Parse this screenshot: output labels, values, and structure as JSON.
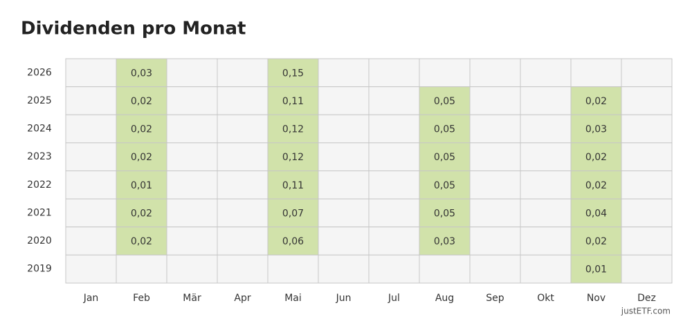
{
  "chart_data": {
    "type": "heatmap",
    "title": "Dividenden pro Monat",
    "credit": "justETF.com",
    "categories": [
      "Jan",
      "Feb",
      "Mär",
      "Apr",
      "Mai",
      "Jun",
      "Jul",
      "Aug",
      "Sep",
      "Okt",
      "Nov",
      "Dez"
    ],
    "rows": [
      "2026",
      "2025",
      "2024",
      "2023",
      "2022",
      "2021",
      "2020",
      "2019"
    ],
    "color": "#d1e2aa",
    "values": [
      [
        null,
        0.03,
        null,
        null,
        0.15,
        null,
        null,
        null,
        null,
        null,
        null,
        null
      ],
      [
        null,
        0.02,
        null,
        null,
        0.11,
        null,
        null,
        0.05,
        null,
        null,
        0.02,
        null
      ],
      [
        null,
        0.02,
        null,
        null,
        0.12,
        null,
        null,
        0.05,
        null,
        null,
        0.03,
        null
      ],
      [
        null,
        0.02,
        null,
        null,
        0.12,
        null,
        null,
        0.05,
        null,
        null,
        0.02,
        null
      ],
      [
        null,
        0.01,
        null,
        null,
        0.11,
        null,
        null,
        0.05,
        null,
        null,
        0.02,
        null
      ],
      [
        null,
        0.02,
        null,
        null,
        0.07,
        null,
        null,
        0.05,
        null,
        null,
        0.04,
        null
      ],
      [
        null,
        0.02,
        null,
        null,
        0.06,
        null,
        null,
        0.03,
        null,
        null,
        0.02,
        null
      ],
      [
        null,
        null,
        null,
        null,
        null,
        null,
        null,
        null,
        null,
        null,
        0.01,
        null
      ]
    ],
    "value_labels": [
      [
        null,
        "0,03",
        null,
        null,
        "0,15",
        null,
        null,
        null,
        null,
        null,
        null,
        null
      ],
      [
        null,
        "0,02",
        null,
        null,
        "0,11",
        null,
        null,
        "0,05",
        null,
        null,
        "0,02",
        null
      ],
      [
        null,
        "0,02",
        null,
        null,
        "0,12",
        null,
        null,
        "0,05",
        null,
        null,
        "0,03",
        null
      ],
      [
        null,
        "0,02",
        null,
        null,
        "0,12",
        null,
        null,
        "0,05",
        null,
        null,
        "0,02",
        null
      ],
      [
        null,
        "0,01",
        null,
        null,
        "0,11",
        null,
        null,
        "0,05",
        null,
        null,
        "0,02",
        null
      ],
      [
        null,
        "0,02",
        null,
        null,
        "0,07",
        null,
        null,
        "0,05",
        null,
        null,
        "0,04",
        null
      ],
      [
        null,
        "0,02",
        null,
        null,
        "0,06",
        null,
        null,
        "0,03",
        null,
        null,
        "0,02",
        null
      ],
      [
        null,
        null,
        null,
        null,
        null,
        null,
        null,
        null,
        null,
        null,
        "0,01",
        null
      ]
    ]
  }
}
